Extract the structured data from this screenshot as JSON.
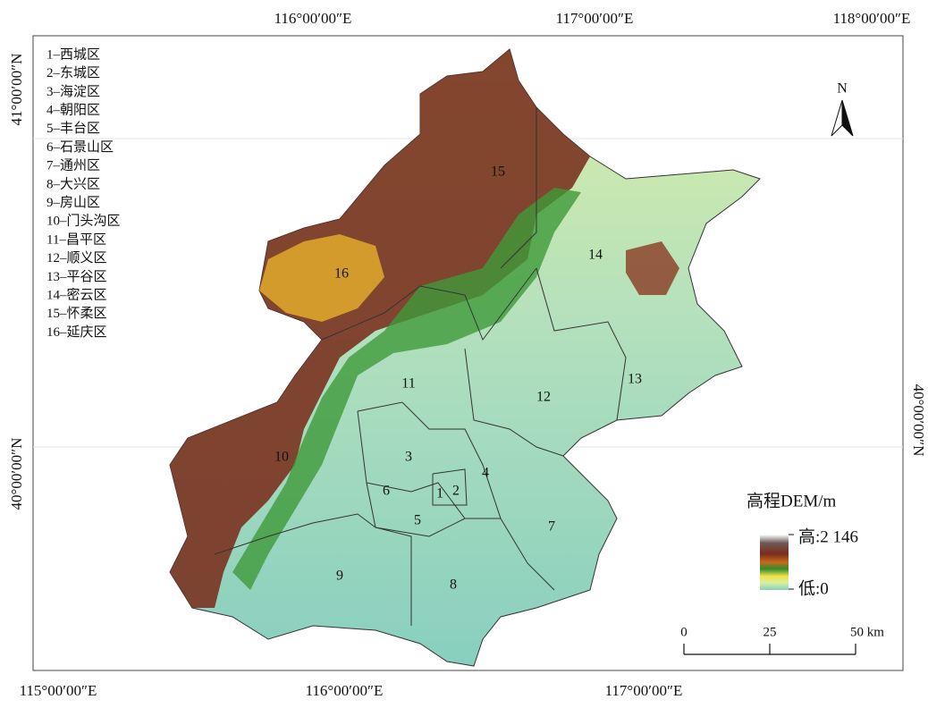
{
  "coordinate_labels": {
    "top": [
      "116°00′00″E",
      "117°00′00″E",
      "118°00′00″E"
    ],
    "bottom": [
      "115°00′00″E",
      "116°00′00″E",
      "117°00′00″E"
    ],
    "left": [
      "41°00′00″N",
      "40°00′00″N"
    ],
    "right": [
      "40°00′00″N"
    ]
  },
  "district_list": [
    "1–西城区",
    "2–东城区",
    "3–海淀区",
    "4–朝阳区",
    "5–丰台区",
    "6–石景山区",
    "7–通州区",
    "8–大兴区",
    "9–房山区",
    "10–门头沟区",
    "11–昌平区",
    "12–顺义区",
    "13–平谷区",
    "14–密云区",
    "15–怀柔区",
    "16–延庆区"
  ],
  "map_labels": [
    "1",
    "2",
    "3",
    "4",
    "5",
    "6",
    "7",
    "8",
    "9",
    "10",
    "11",
    "12",
    "13",
    "14",
    "15",
    "16"
  ],
  "north_arrow": "N",
  "legend": {
    "title": "高程DEM/m",
    "high": "高:2 146",
    "low": "低:0"
  },
  "scale_bar": {
    "ticks": [
      "0",
      "25",
      "50 km"
    ]
  }
}
